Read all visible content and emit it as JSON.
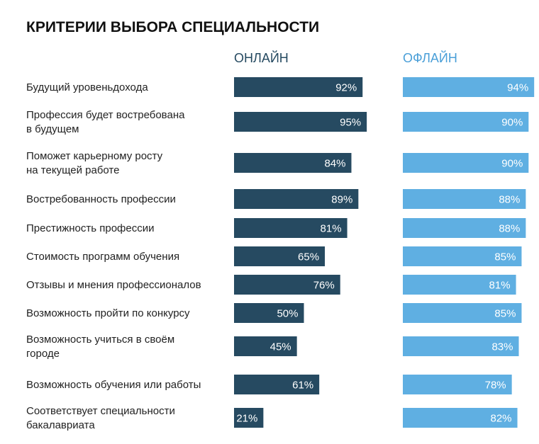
{
  "chart_data": {
    "type": "bar",
    "title": "КРИТЕРИИ ВЫБОРА СПЕЦИАЛЬНОСТИ",
    "xlabel": "",
    "ylabel": "",
    "xlim": [
      0,
      100
    ],
    "categories": [
      [
        "Будущий уровеньдохода"
      ],
      [
        "Профессия будет востребована",
        "в будущем"
      ],
      [
        "Поможет карьерному росту",
        "на текущей работе"
      ],
      [
        "Востребованность профессии"
      ],
      [
        "Престижность профессии"
      ],
      [
        "Стоимость программ обучения"
      ],
      [
        "Отзывы и мнения профессионалов"
      ],
      [
        "Возможность пройти по конкурсу"
      ],
      [
        "Возможность учиться в своём",
        "городе"
      ],
      [
        "Возможность обучения или работы"
      ],
      [
        "Соответствует специальности",
        "бакалавриата"
      ]
    ],
    "series": [
      {
        "name": "ОНЛАЙН",
        "color": "#264a61",
        "header_color": "#264a61",
        "values": [
          92,
          95,
          84,
          89,
          81,
          65,
          76,
          50,
          45,
          61,
          21
        ],
        "labels": [
          "92%",
          "95%",
          "84%",
          "89%",
          "81%",
          "65%",
          "76%",
          "50%",
          "45%",
          "61%",
          "21%"
        ]
      },
      {
        "name": "ОФЛАЙН",
        "color": "#5fafe2",
        "header_color": "#4a9fd8",
        "values": [
          94,
          90,
          90,
          88,
          88,
          85,
          81,
          85,
          83,
          78,
          82
        ],
        "labels": [
          "94%",
          "90%",
          "90%",
          "88%",
          "88%",
          "85%",
          "81%",
          "85%",
          "83%",
          "78%",
          "82%"
        ]
      }
    ]
  },
  "colors": {
    "title": "#111111",
    "category_text": "#222222",
    "bar_label": "#ffffff"
  }
}
